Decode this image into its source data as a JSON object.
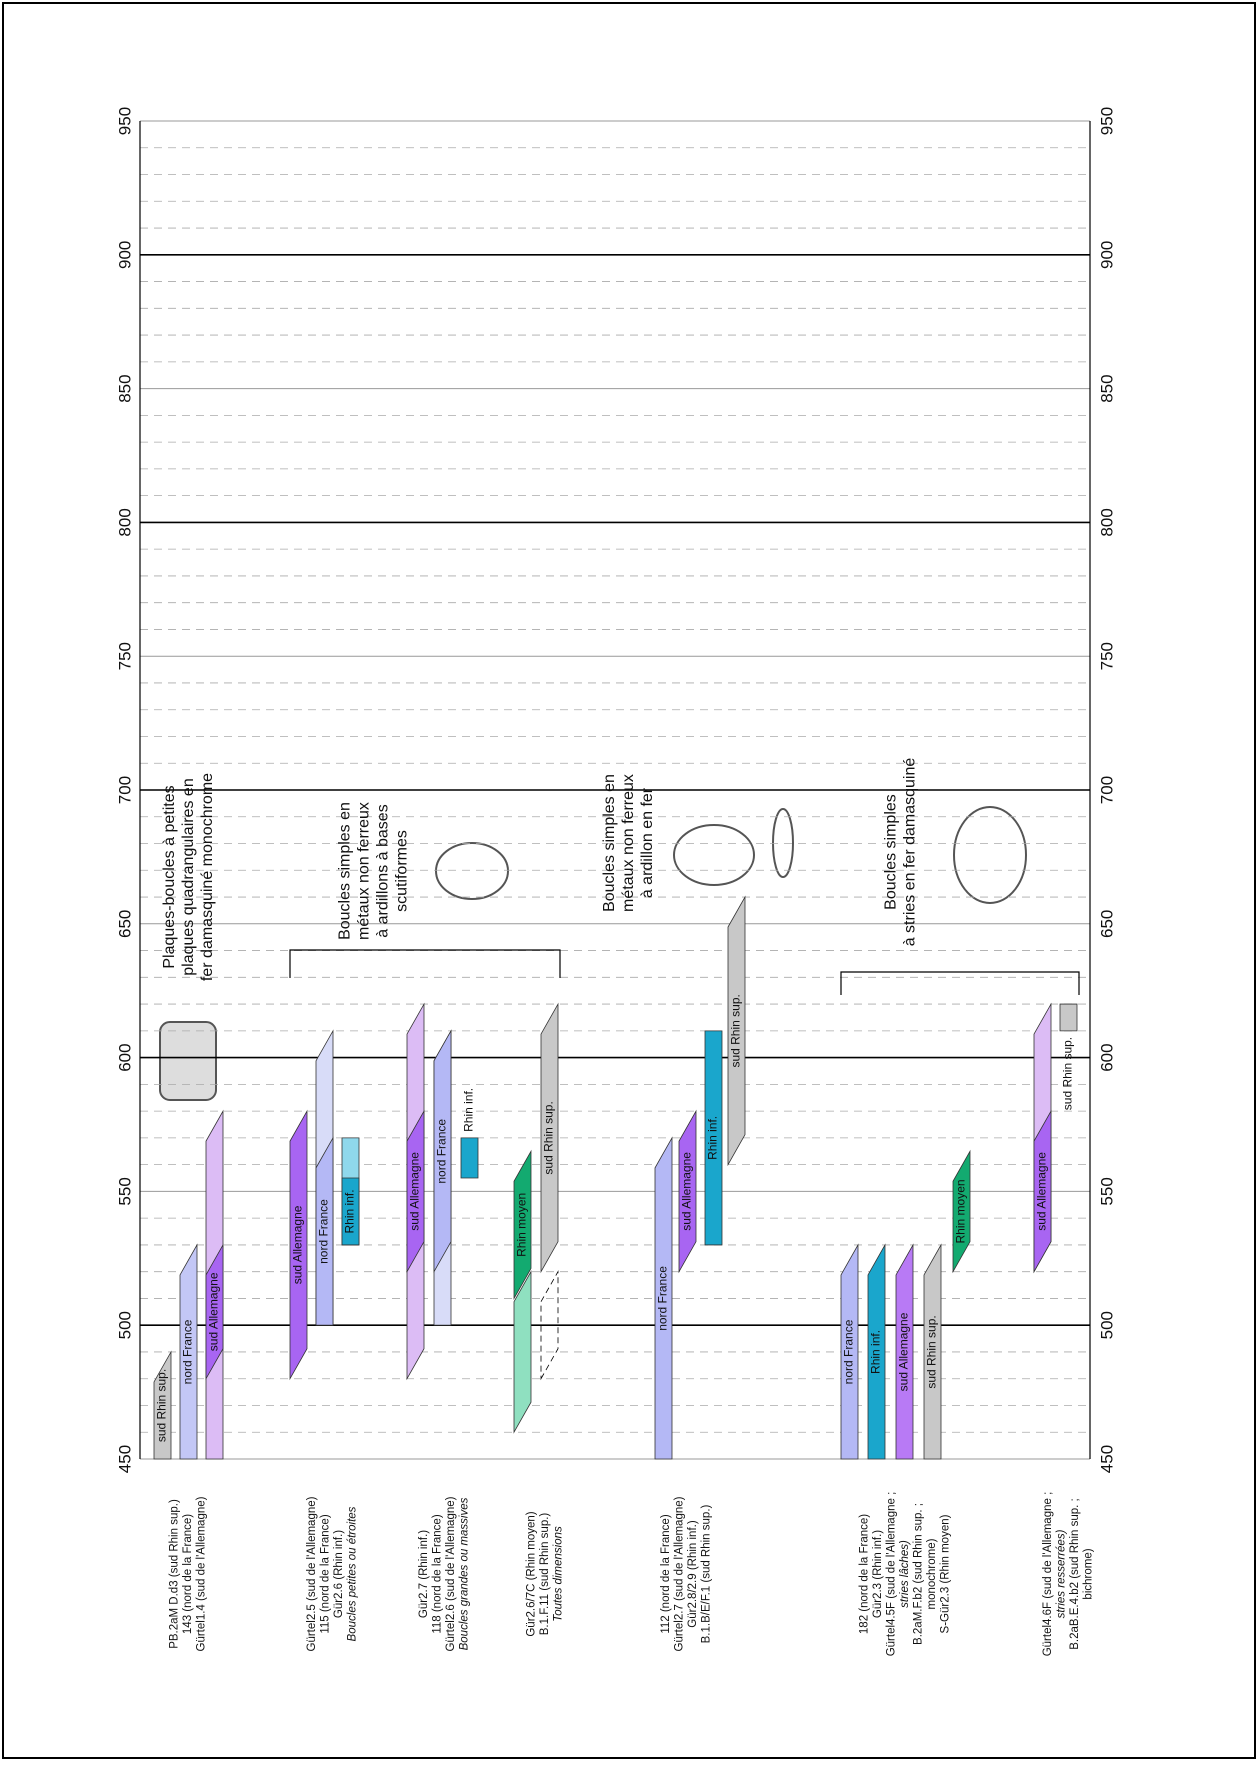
{
  "chart_data": {
    "type": "range-bar",
    "ylim": [
      450,
      950
    ],
    "yticks": [
      450,
      500,
      550,
      600,
      650,
      700,
      750,
      800,
      850,
      900,
      950
    ],
    "minor_yticks": [
      460,
      470,
      480,
      490,
      510,
      520,
      530,
      540,
      560,
      570,
      580,
      590,
      610,
      620,
      630,
      640,
      660,
      670,
      680,
      690,
      710,
      720,
      730,
      740,
      760,
      770,
      780,
      790,
      810,
      820,
      830,
      840,
      860,
      870,
      880,
      890,
      910,
      920,
      930,
      940
    ],
    "grid": true,
    "annotations": [
      {
        "lines": [
          "Plaques-boucles à petites",
          "plaques quadrangulaires en",
          "fer damasquiné monochrome"
        ]
      },
      {
        "lines": [
          "Boucles simples en",
          "métaux non ferreux",
          "à ardillons à bases",
          "scutiformes"
        ]
      },
      {
        "lines": [
          "Boucles simples en",
          "métaux non ferreux",
          "à ardillon en fer"
        ]
      },
      {
        "lines": [
          "Boucles simples",
          "à stries en fer damasquiné"
        ]
      }
    ],
    "groups": [
      {
        "lines": [
          "PB.2aM D.d3 (sud Rhin sup.)",
          "143 (nord de la France)",
          "Gürtel1.4 (sud de l'Allemagne)"
        ],
        "italic": [],
        "bars": [
          {
            "label": "sud Rhin sup.",
            "from": 450,
            "to": 490,
            "color": "#c8c8c8",
            "shape": "top-slanted"
          },
          {
            "label": "nord France",
            "from": 450,
            "to": 530,
            "color": "#c3c7f6",
            "shape": "top-slanted"
          },
          {
            "from": 450,
            "to": 580,
            "color": "#dcbcf5",
            "shape": "top-slanted"
          },
          {
            "label": "sud Allemagne",
            "from": 480,
            "to": 530,
            "color": "#a865f2",
            "shape": "slanted"
          }
        ]
      },
      {
        "lines": [
          "Gürtel2.5 (sud de l'Allemagne)",
          "115 (nord de la France)",
          "Gür2.6 (Rhin inf.)",
          "Boucles petites ou étroites"
        ],
        "italic": [
          3
        ],
        "bars": [
          {
            "label": "sud Allemagne",
            "from": 480,
            "to": 580,
            "color": "#a865f2",
            "shape": "slanted"
          },
          {
            "from": 500,
            "to": 610,
            "color": "#d8dcf8",
            "shape": "top-slanted"
          },
          {
            "label": "nord France",
            "from": 500,
            "to": 570,
            "color": "#b4b8f5",
            "shape": "top-slanted"
          },
          {
            "from": 530,
            "to": 570,
            "color": "#8fd8ec",
            "shape": "rect"
          },
          {
            "label": "Rhin inf.",
            "from": 530,
            "to": 555,
            "color": "#1aa6cc",
            "shape": "rect"
          }
        ]
      },
      {
        "lines": [
          "Gür2.7 (Rhin inf.)",
          "118 (nord de la France)",
          "Gürtel2.6 (sud de l'Allemagne)",
          "Boucles grandes ou massives"
        ],
        "italic": [
          3
        ],
        "bars": [
          {
            "from": 480,
            "to": 620,
            "color": "#dcbcf5",
            "shape": "slanted"
          },
          {
            "label": "sud Allemagne",
            "from": 520,
            "to": 580,
            "color": "#a865f2",
            "shape": "slanted"
          },
          {
            "from": 500,
            "to": 610,
            "color": "#d8dcf8",
            "shape": "top-slanted"
          },
          {
            "label": "nord France",
            "from": 520,
            "to": 610,
            "color": "#b4b8f5",
            "shape": "slanted"
          },
          {
            "label": "Rhin inf.",
            "from": 555,
            "to": 570,
            "color": "#1aa6cc",
            "shape": "rect",
            "label_pos": "above"
          }
        ]
      },
      {
        "lines": [
          "Gür2.6/7C (Rhin moyen)",
          "B.1.F.11 (sud Rhin sup.)",
          "Toutes dimensions"
        ],
        "italic": [
          2
        ],
        "bars": [
          {
            "from": 460,
            "to": 520,
            "color": "#8fe0c0",
            "shape": "slanted"
          },
          {
            "label": "Rhin moyen",
            "from": 510,
            "to": 565,
            "color": "#13aa70",
            "shape": "slanted"
          },
          {
            "from": 480,
            "to": 520,
            "color": "none",
            "shape": "slanted",
            "dashed": true
          },
          {
            "label": "sud Rhin sup.",
            "from": 520,
            "to": 620,
            "color": "#c8c8c8",
            "shape": "slanted"
          }
        ]
      },
      {
        "lines": [
          "112 (nord de la France)",
          "Gürtel2.7 (sud de l'Allemagne)",
          "Gür2.8/2.9 (Rhin inf.)",
          "B.1.B/E/F.1 (sud Rhin sup.)"
        ],
        "italic": [],
        "bars": [
          {
            "label": "nord France",
            "from": 450,
            "to": 570,
            "color": "#b4b8f5",
            "shape": "top-slanted"
          },
          {
            "label": "sud Allemagne",
            "from": 520,
            "to": 580,
            "color": "#a865f2",
            "shape": "slanted"
          },
          {
            "label": "Rhin inf.",
            "from": 530,
            "to": 610,
            "color": "#1aa6cc",
            "shape": "rect"
          },
          {
            "label": "sud Rhin sup.",
            "from": 560,
            "to": 660,
            "color": "#c8c8c8",
            "shape": "slanted"
          }
        ]
      },
      {
        "lines": [
          "182 (nord de la France)",
          "Gür2.3 (Rhin inf.)",
          "Gürtel4.5F (sud de l'Allemagne ;",
          "stries lâches)",
          "B.2aM.F.b2 (sud Rhin sup. ;",
          "monochrome)",
          "S-Gür2.3 (Rhin moyen)"
        ],
        "italic": [
          3
        ],
        "bars": [
          {
            "label": "nord France",
            "from": 450,
            "to": 530,
            "color": "#b4b8f5",
            "shape": "top-slanted"
          },
          {
            "label": "Rhin inf.",
            "from": 450,
            "to": 530,
            "color": "#1aa6cc",
            "shape": "top-slanted"
          },
          {
            "label": "sud Allemagne",
            "from": 450,
            "to": 530,
            "color": "#b87af5",
            "shape": "top-slanted"
          },
          {
            "label": "sud Rhin sup.",
            "from": 450,
            "to": 530,
            "color": "#c8c8c8",
            "shape": "top-slanted"
          },
          {
            "label": "Rhin moyen",
            "from": 520,
            "to": 565,
            "color": "#13aa70",
            "shape": "slanted"
          }
        ]
      },
      {
        "lines": [
          "Gürtel4.6F (sud de l'Allemagne ;",
          "stries resserrées)",
          "B.2aB.E.4.b2 (sud Rhin sup. ;",
          "bichrome)"
        ],
        "italic": [
          1
        ],
        "bars": [
          {
            "from": 520,
            "to": 620,
            "color": "#dcbcf5",
            "shape": "slanted"
          },
          {
            "label": "sud Allemagne",
            "from": 520,
            "to": 580,
            "color": "#a865f2",
            "shape": "slanted"
          },
          {
            "label": "sud Rhin sup.",
            "from": 610,
            "to": 620,
            "color": "#c8c8c8",
            "shape": "rect",
            "label_pos": "below"
          }
        ]
      }
    ]
  }
}
